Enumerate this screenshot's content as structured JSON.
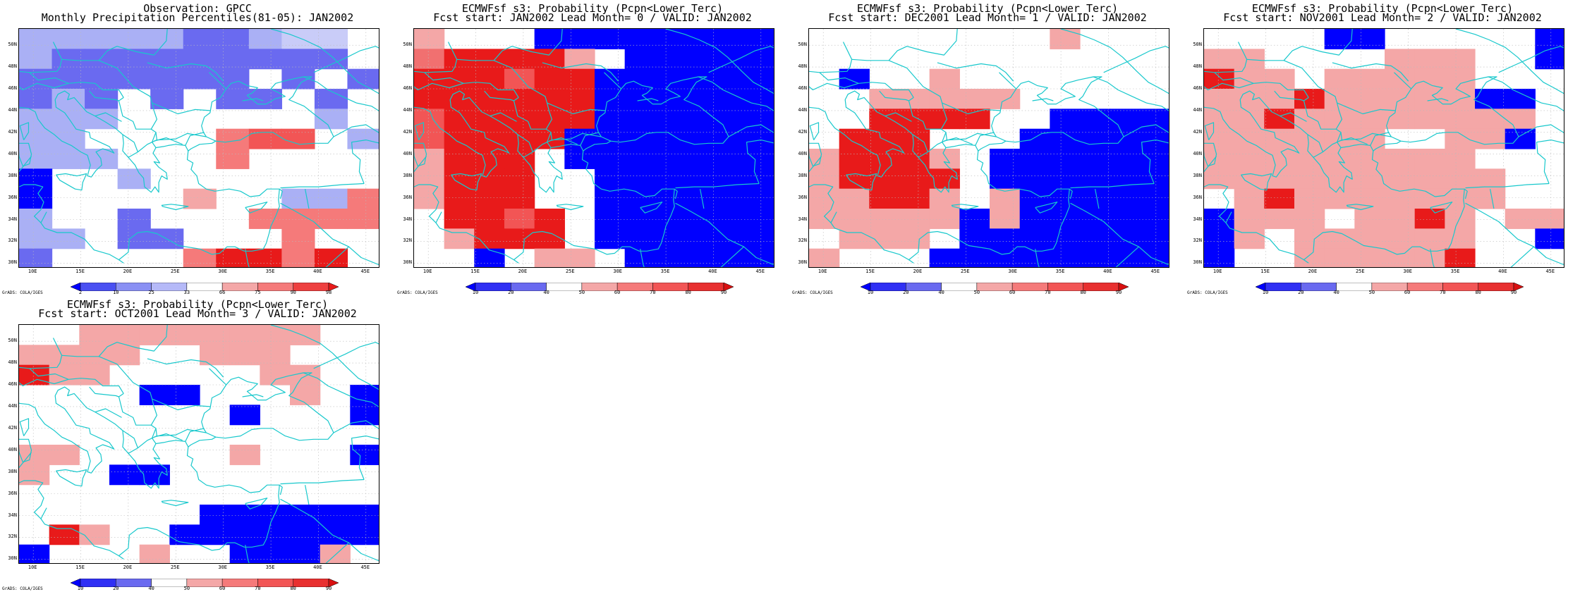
{
  "maps": [
    {
      "title_line1": "Observation: GPCC",
      "title_line2": "Monthly Precipitation Percentiles(81-05): JAN2002",
      "colorbar_labels": [
        "2",
        "10",
        "25",
        "33",
        "66",
        "75",
        "90",
        "98"
      ],
      "colorbar_kind": "obs",
      "grid": [
        "LLLLLMMLAAW",
        "LMMMMMMMMMW",
        "MMMMMMMWMWM",
        "MLMWMWMMWMW",
        "LLLWWWWWWLW",
        "LLWWWWKSSWL",
        "LLLWWWKWWWW",
        "BWWLWWWWWWW",
        "BWWWWkWWLLK",
        "LWWMWWWKKKK",
        "LLWMMWWWKWW",
        "MWWWWKRRKRW"
      ],
      "credit": "GrADS: COLA/IGES"
    },
    {
      "title_line1": "ECMWFsf s3: Probability (Pcpn<Lower Terc)",
      "title_line2": "Fcst start: JAN2002  Lead Month= 0 / VALID: JAN2002",
      "colorbar_labels": [
        "10",
        "20",
        "40",
        "50",
        "60",
        "70",
        "80",
        "90"
      ],
      "colorbar_kind": "prob",
      "grid": [
        "kWWWBBBBBBBB",
        "rRRRRkWBBBBB",
        "RRRSRRBBBBBB",
        "RRRRRRBBBBBB",
        "SRRRRRBBBBBB",
        "SRRRRBBBBBBB",
        "kRRRWBBBBBBB",
        "kRRRWWBBBBBB",
        "kRRRWWBBBBBB",
        "WRRSRWBBBBBB",
        "WkRRRWBBBBBB",
        "WWBWkkWBBBBB"
      ],
      "credit": "GrADS: COLA/IGES"
    },
    {
      "title_line1": "ECMWFsf s3: Probability (Pcpn<Lower Terc)",
      "title_line2": "Fcst start: DEC2001   Lead Month= 1 / VALID: JAN2002",
      "colorbar_labels": [
        "10",
        "20",
        "40",
        "50",
        "60",
        "70",
        "80",
        "90"
      ],
      "colorbar_kind": "prob",
      "grid": [
        "WWWWWWWWkWWW",
        "WWWWWWWWWWWW",
        "WBWWkWWWWWWW",
        "WWkkkkkWWWWW",
        "WWRRRRWWBBBB",
        "WRRRWWWBBBBB",
        "kRRRkWBBBBBB",
        "kRRRRWBBBBBB",
        "kkRRkWkBBBBB",
        "kkkkkBkBBBBB",
        "WkkkWBBBBBBB",
        "kWWWBBBBBBBB"
      ],
      "credit": "GrADS: COLA/IGES"
    },
    {
      "title_line1": "ECMWFsf s3: Probability (Pcpn<Lower Terc)",
      "title_line2": "Fcst start: NOV2001   Lead Month= 2 / VALID: JAN2002",
      "colorbar_labels": [
        "10",
        "20",
        "40",
        "50",
        "60",
        "70",
        "80",
        "90"
      ],
      "colorbar_kind": "prob",
      "grid": [
        "WWWWBBWWWWWB",
        "kkWWWWkkkWWB",
        "RkkWkkkkkWWW",
        "kkkRkkkkkBBW",
        "kkRkkkkkkkkW",
        "kkkkkkWWkkBW",
        "kkkkkkkkkWWW",
        "kkkkkkkkkkWW",
        "WkRkkkkkkkWW",
        "BkkkWkkRkWkk",
        "BkWkkkkkkWWB",
        "BWWkkkkkRWWW"
      ],
      "credit": "GrADS: COLA/IGES"
    },
    {
      "title_line1": "ECMWFsf s3: Probability (Pcpn<Lower Terc)",
      "title_line2": "Fcst start: OCT2001   Lead Month= 3 / VALID: JAN2002",
      "colorbar_labels": [
        "10",
        "20",
        "40",
        "50",
        "60",
        "70",
        "80",
        "90"
      ],
      "colorbar_kind": "prob",
      "grid": [
        "WWkkkkkkkkWW",
        "kkkkWWkkkWWW",
        "RkkWWWWWkkWW",
        "WWWWBBWWWkWB",
        "WWWWWWWBWWWB",
        "WWWWWWWWWWWW",
        "kkWWWWWkWWWB",
        "kWWBBWWWWWWW",
        "WWWWWWWWWWWW",
        "WWWWWWBBBBBB",
        "WRkWWBBBBBBB",
        "BWWWkWWBBBkW"
      ],
      "credit": "GrADS: COLA/IGES"
    }
  ],
  "lat_labels": [
    "50N",
    "48N",
    "46N",
    "44N",
    "42N",
    "40N",
    "38N",
    "36N",
    "34N",
    "32N",
    "30N"
  ],
  "lon_labels": [
    "10E",
    "15E",
    "20E",
    "25E",
    "30E",
    "35E",
    "40E",
    "45E"
  ],
  "palette": {
    "W": "#ffffff",
    "B": "#0000ff",
    "M": "#6a6af0",
    "L": "#aab0f5",
    "A": "#c9ccf8",
    "K": "#f57a7a",
    "k": "#f4a7a7",
    "S": "#f25555",
    "R": "#e81a1a",
    "r": "#f17070"
  },
  "colorbar_colors": {
    "obs": [
      "#0000ff",
      "#4a50f2",
      "#8a90f4",
      "#b5b9f8",
      "#ffffff",
      "#f4a7a7",
      "#f57a7a",
      "#ee4040",
      "#e81a1a"
    ],
    "prob": [
      "#0000ff",
      "#3030f4",
      "#6a6af0",
      "#ffffff",
      "#f4a7a7",
      "#f57a7a",
      "#f25555",
      "#e83030",
      "#d81010"
    ]
  },
  "coast_color": "#18c8cc"
}
